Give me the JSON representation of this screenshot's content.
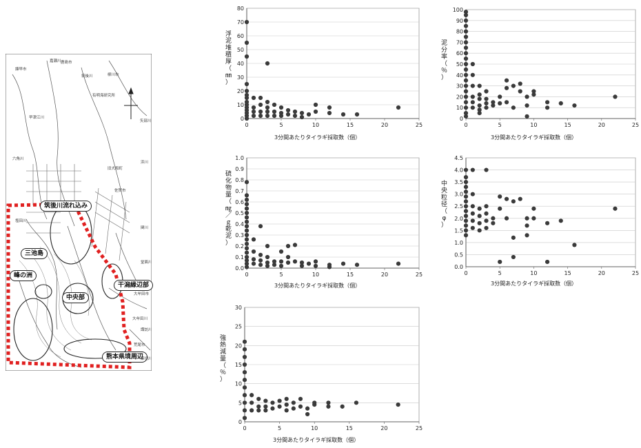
{
  "map": {
    "region_labels": {
      "chikugo": "筑後川流れ込み",
      "mitsuike": "三池島",
      "minenosu": "峰の洲",
      "chuobu": "中央部",
      "higata": "干潟縁辺部",
      "kumamoto": "熊本県境周辺"
    },
    "place_labels": [
      "有明海研究所",
      "柳川市",
      "大牟田市",
      "荒尾市",
      "旧大和町",
      "諫早市",
      "佐賀市",
      "鹿島市",
      "矢部川",
      "嘉瀬川",
      "早津江川",
      "筑後川",
      "六角川",
      "塩田川",
      "浜川",
      "関川",
      "堂面川",
      "大牟田川",
      "諏訪川",
      "菜切川"
    ]
  },
  "chart_data": [
    {
      "id": "mud-thickness",
      "type": "scatter",
      "ylabel": "浮泥堆積厚（㎜）",
      "xlabel": "3分間あたりタイラギ採取数（個）",
      "xlim": [
        0,
        25
      ],
      "ylim": [
        0,
        80
      ],
      "xticks": [
        0,
        5,
        10,
        15,
        20,
        25
      ],
      "yticks": [
        0,
        10,
        20,
        30,
        40,
        50,
        60,
        70,
        80
      ],
      "ytick_labels": [
        "0",
        "10",
        "20",
        "30",
        "40",
        "50",
        "60",
        "70",
        "80"
      ],
      "grid": true,
      "points": [
        [
          0,
          70
        ],
        [
          0,
          55
        ],
        [
          0,
          45
        ],
        [
          0,
          25
        ],
        [
          0,
          20
        ],
        [
          0,
          17
        ],
        [
          0,
          15
        ],
        [
          0,
          12
        ],
        [
          0,
          10
        ],
        [
          0,
          8
        ],
        [
          0,
          6
        ],
        [
          0,
          4
        ],
        [
          0,
          2
        ],
        [
          0,
          0
        ],
        [
          1,
          15
        ],
        [
          1,
          8
        ],
        [
          1,
          5
        ],
        [
          1,
          2
        ],
        [
          2,
          15
        ],
        [
          2,
          10
        ],
        [
          2,
          5
        ],
        [
          2,
          2
        ],
        [
          3,
          40
        ],
        [
          3,
          12
        ],
        [
          3,
          8
        ],
        [
          3,
          5
        ],
        [
          3,
          2
        ],
        [
          4,
          10
        ],
        [
          4,
          5
        ],
        [
          4,
          2
        ],
        [
          5,
          8
        ],
        [
          5,
          4
        ],
        [
          5,
          2
        ],
        [
          6,
          6
        ],
        [
          6,
          3
        ],
        [
          7,
          5
        ],
        [
          7,
          2
        ],
        [
          8,
          4
        ],
        [
          8,
          1
        ],
        [
          9,
          3
        ],
        [
          10,
          10
        ],
        [
          10,
          5
        ],
        [
          12,
          8
        ],
        [
          12,
          4
        ],
        [
          14,
          3
        ],
        [
          16,
          3
        ],
        [
          22,
          8
        ]
      ]
    },
    {
      "id": "mud-ratio",
      "type": "scatter",
      "ylabel": "泥分率（％）",
      "xlabel": "3分間あたりタイラギ採取数（個）",
      "xlim": [
        0,
        25
      ],
      "ylim": [
        0,
        100
      ],
      "xticks": [
        0,
        5,
        10,
        15,
        20,
        25
      ],
      "yticks": [
        0,
        10,
        20,
        30,
        40,
        50,
        60,
        70,
        80,
        90,
        100
      ],
      "ytick_labels": [
        "0",
        "10",
        "20",
        "30",
        "40",
        "50",
        "60",
        "70",
        "80",
        "90",
        "100"
      ],
      "grid": true,
      "points": [
        [
          0,
          98
        ],
        [
          0,
          95
        ],
        [
          0,
          90
        ],
        [
          0,
          85
        ],
        [
          0,
          80
        ],
        [
          0,
          75
        ],
        [
          0,
          70
        ],
        [
          0,
          65
        ],
        [
          0,
          60
        ],
        [
          0,
          55
        ],
        [
          0,
          50
        ],
        [
          0,
          45
        ],
        [
          0,
          40
        ],
        [
          0,
          35
        ],
        [
          0,
          30
        ],
        [
          0,
          25
        ],
        [
          0,
          20
        ],
        [
          0,
          15
        ],
        [
          0,
          10
        ],
        [
          0,
          5
        ],
        [
          0,
          2
        ],
        [
          1,
          50
        ],
        [
          1,
          40
        ],
        [
          1,
          30
        ],
        [
          1,
          20
        ],
        [
          1,
          15
        ],
        [
          1,
          10
        ],
        [
          2,
          30
        ],
        [
          2,
          22
        ],
        [
          2,
          18
        ],
        [
          2,
          12
        ],
        [
          2,
          8
        ],
        [
          2,
          5
        ],
        [
          3,
          25
        ],
        [
          3,
          18
        ],
        [
          3,
          14
        ],
        [
          3,
          10
        ],
        [
          4,
          15
        ],
        [
          4,
          12
        ],
        [
          5,
          20
        ],
        [
          5,
          14
        ],
        [
          6,
          35
        ],
        [
          6,
          28
        ],
        [
          6,
          15
        ],
        [
          7,
          30
        ],
        [
          7,
          10
        ],
        [
          8,
          25
        ],
        [
          8,
          32
        ],
        [
          9,
          20
        ],
        [
          9,
          12
        ],
        [
          9,
          2
        ],
        [
          10,
          25
        ],
        [
          10,
          22
        ],
        [
          12,
          15
        ],
        [
          12,
          10
        ],
        [
          14,
          14
        ],
        [
          16,
          12
        ],
        [
          22,
          20
        ]
      ]
    },
    {
      "id": "sulfide",
      "type": "scatter",
      "ylabel": "硫化物量（㎎／ｇ乾泥）",
      "xlabel": "3分間あたりタイラギ採取数（個）",
      "xlim": [
        0,
        25
      ],
      "ylim": [
        0,
        1.0
      ],
      "xticks": [
        0,
        5,
        10,
        15,
        20,
        25
      ],
      "yticks": [
        0,
        0.1,
        0.2,
        0.3,
        0.4,
        0.5,
        0.6,
        0.7,
        0.8,
        0.9,
        1.0
      ],
      "ytick_labels": [
        "0.0",
        "0.1",
        "0.2",
        "0.3",
        "0.4",
        "0.5",
        "0.6",
        "0.7",
        "0.8",
        "0.9",
        "1.0"
      ],
      "grid": true,
      "points": [
        [
          0,
          0.78
        ],
        [
          0,
          0.66
        ],
        [
          0,
          0.62
        ],
        [
          0,
          0.58
        ],
        [
          0,
          0.54
        ],
        [
          0,
          0.5
        ],
        [
          0,
          0.46
        ],
        [
          0,
          0.42
        ],
        [
          0,
          0.38
        ],
        [
          0,
          0.34
        ],
        [
          0,
          0.3
        ],
        [
          0,
          0.26
        ],
        [
          0,
          0.22
        ],
        [
          0,
          0.18
        ],
        [
          0,
          0.14
        ],
        [
          0,
          0.1
        ],
        [
          0,
          0.07
        ],
        [
          0,
          0.04
        ],
        [
          0,
          0.01
        ],
        [
          1,
          0.26
        ],
        [
          1,
          0.15
        ],
        [
          1,
          0.08
        ],
        [
          1,
          0.04
        ],
        [
          2,
          0.38
        ],
        [
          2,
          0.12
        ],
        [
          2,
          0.07
        ],
        [
          2,
          0.03
        ],
        [
          3,
          0.2
        ],
        [
          3,
          0.1
        ],
        [
          3,
          0.05
        ],
        [
          3,
          0.02
        ],
        [
          4,
          0.06
        ],
        [
          4,
          0.03
        ],
        [
          5,
          0.15
        ],
        [
          5,
          0.06
        ],
        [
          5,
          0.02
        ],
        [
          6,
          0.2
        ],
        [
          6,
          0.1
        ],
        [
          6,
          0.05
        ],
        [
          7,
          0.21
        ],
        [
          7,
          0.06
        ],
        [
          8,
          0.05
        ],
        [
          8,
          0.02
        ],
        [
          9,
          0.04
        ],
        [
          10,
          0.06
        ],
        [
          10,
          0.02
        ],
        [
          12,
          0.03
        ],
        [
          12,
          0.01
        ],
        [
          14,
          0.04
        ],
        [
          16,
          0.03
        ],
        [
          22,
          0.04
        ]
      ]
    },
    {
      "id": "grain-size",
      "type": "scatter",
      "ylabel": "中央粒径（φ）",
      "xlabel": "3分間あたりタイラギ採取数（個）",
      "xlim": [
        0,
        25
      ],
      "ylim": [
        0,
        4.5
      ],
      "xticks": [
        0,
        5,
        10,
        15,
        20,
        25
      ],
      "yticks": [
        0,
        0.5,
        1.0,
        1.5,
        2.0,
        2.5,
        3.0,
        3.5,
        4.0,
        4.5
      ],
      "ytick_labels": [
        "0.0",
        "0.5",
        "1.0",
        "1.5",
        "2.0",
        "2.5",
        "3.0",
        "3.5",
        "4.0",
        "4.5"
      ],
      "grid": true,
      "points": [
        [
          0,
          4.0
        ],
        [
          0,
          3.7
        ],
        [
          0,
          3.5
        ],
        [
          0,
          3.3
        ],
        [
          0,
          3.1
        ],
        [
          0,
          2.9
        ],
        [
          0,
          2.7
        ],
        [
          0,
          2.5
        ],
        [
          0,
          2.3
        ],
        [
          0,
          2.1
        ],
        [
          0,
          1.9
        ],
        [
          0,
          1.7
        ],
        [
          0,
          1.5
        ],
        [
          0,
          1.3
        ],
        [
          1,
          4.0
        ],
        [
          1,
          3.0
        ],
        [
          1,
          2.5
        ],
        [
          1,
          2.2
        ],
        [
          1,
          1.9
        ],
        [
          1,
          1.6
        ],
        [
          2,
          2.4
        ],
        [
          2,
          2.1
        ],
        [
          2,
          1.8
        ],
        [
          2,
          1.5
        ],
        [
          3,
          4.0
        ],
        [
          3,
          2.5
        ],
        [
          3,
          2.2
        ],
        [
          3,
          1.9
        ],
        [
          3,
          1.6
        ],
        [
          4,
          2.0
        ],
        [
          4,
          1.8
        ],
        [
          5,
          2.9
        ],
        [
          5,
          2.4
        ],
        [
          5,
          0.2
        ],
        [
          6,
          2.8
        ],
        [
          6,
          2.0
        ],
        [
          7,
          2.7
        ],
        [
          7,
          1.2
        ],
        [
          7,
          0.4
        ],
        [
          8,
          2.8
        ],
        [
          9,
          2.0
        ],
        [
          9,
          1.7
        ],
        [
          9,
          1.3
        ],
        [
          10,
          2.4
        ],
        [
          10,
          2.0
        ],
        [
          12,
          1.8
        ],
        [
          12,
          0.2
        ],
        [
          14,
          1.9
        ],
        [
          16,
          0.9
        ],
        [
          22,
          2.4
        ]
      ]
    },
    {
      "id": "ignition-loss",
      "type": "scatter",
      "ylabel": "強熱減量（％）",
      "xlabel": "3分間あたりタイラギ採取数（個）",
      "xlim": [
        0,
        25
      ],
      "ylim": [
        0,
        30
      ],
      "xticks": [
        0,
        5,
        10,
        15,
        20,
        25
      ],
      "yticks": [
        0,
        5,
        10,
        15,
        20,
        25,
        30
      ],
      "ytick_labels": [
        "0",
        "5",
        "10",
        "15",
        "20",
        "25",
        "30"
      ],
      "grid": true,
      "points": [
        [
          0,
          21
        ],
        [
          0,
          19
        ],
        [
          0,
          17
        ],
        [
          0,
          15
        ],
        [
          0,
          13
        ],
        [
          0,
          11
        ],
        [
          0,
          9
        ],
        [
          0,
          7
        ],
        [
          0,
          5
        ],
        [
          0,
          3
        ],
        [
          0,
          1
        ],
        [
          1,
          7
        ],
        [
          1,
          5
        ],
        [
          1,
          3
        ],
        [
          2,
          6
        ],
        [
          2,
          4
        ],
        [
          2,
          3
        ],
        [
          3,
          5.5
        ],
        [
          3,
          4
        ],
        [
          3,
          3
        ],
        [
          4,
          5
        ],
        [
          4,
          3.5
        ],
        [
          5,
          5.5
        ],
        [
          5,
          4
        ],
        [
          6,
          6
        ],
        [
          6,
          4.5
        ],
        [
          6,
          3
        ],
        [
          7,
          5
        ],
        [
          7,
          3.5
        ],
        [
          8,
          6
        ],
        [
          8,
          4
        ],
        [
          9,
          3.5
        ],
        [
          9,
          2
        ],
        [
          10,
          5
        ],
        [
          10,
          4.5
        ],
        [
          12,
          5
        ],
        [
          12,
          4
        ],
        [
          14,
          4
        ],
        [
          16,
          5
        ],
        [
          22,
          4.5
        ]
      ]
    }
  ]
}
